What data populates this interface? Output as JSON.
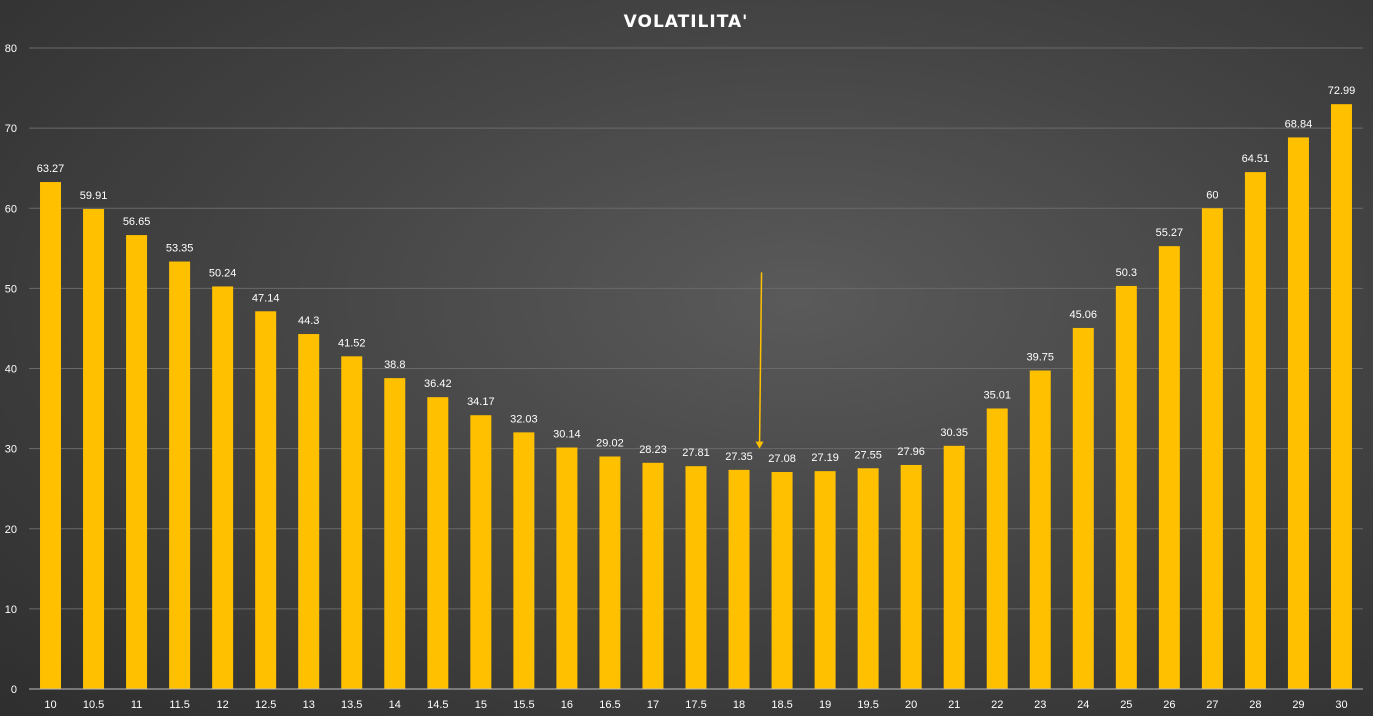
{
  "chart_data": {
    "type": "bar",
    "title": "VOLATILITA'",
    "xlabel": "",
    "ylabel": "",
    "ylim": [
      0,
      80
    ],
    "yticks": [
      0,
      10,
      20,
      30,
      40,
      50,
      60,
      70,
      80
    ],
    "grid": true,
    "bar_color": "#FFC000",
    "categories": [
      "10",
      "10.5",
      "11",
      "11.5",
      "12",
      "12.5",
      "13",
      "13.5",
      "14",
      "14.5",
      "15",
      "15.5",
      "16",
      "16.5",
      "17",
      "17.5",
      "18",
      "18.5",
      "19",
      "19.5",
      "20",
      "21",
      "22",
      "23",
      "24",
      "25",
      "26",
      "27",
      "28",
      "29",
      "30"
    ],
    "values": [
      63.27,
      59.91,
      56.65,
      53.35,
      50.24,
      47.14,
      44.3,
      41.52,
      38.8,
      36.42,
      34.17,
      32.03,
      30.14,
      29.02,
      28.23,
      27.81,
      27.35,
      27.08,
      27.19,
      27.55,
      27.96,
      30.35,
      35.01,
      39.75,
      45.06,
      50.3,
      55.27,
      60,
      64.51,
      68.84,
      72.99
    ],
    "data_labels": [
      "63.27",
      "59.91",
      "56.65",
      "53.35",
      "50.24",
      "47.14",
      "44.3",
      "41.52",
      "38.8",
      "36.42",
      "34.17",
      "32.03",
      "30.14",
      "29.02",
      "28.23",
      "27.81",
      "27.35",
      "27.08",
      "27.19",
      "27.55",
      "27.96",
      "30.35",
      "35.01",
      "39.75",
      "45.06",
      "50.3",
      "55.27",
      "60",
      "64.51",
      "68.84",
      "72.99"
    ],
    "annotations": [
      {
        "type": "arrow",
        "color": "#FFC000",
        "x_between": [
          "18",
          "18.5"
        ],
        "y_from": 52,
        "y_to": 30
      }
    ]
  }
}
